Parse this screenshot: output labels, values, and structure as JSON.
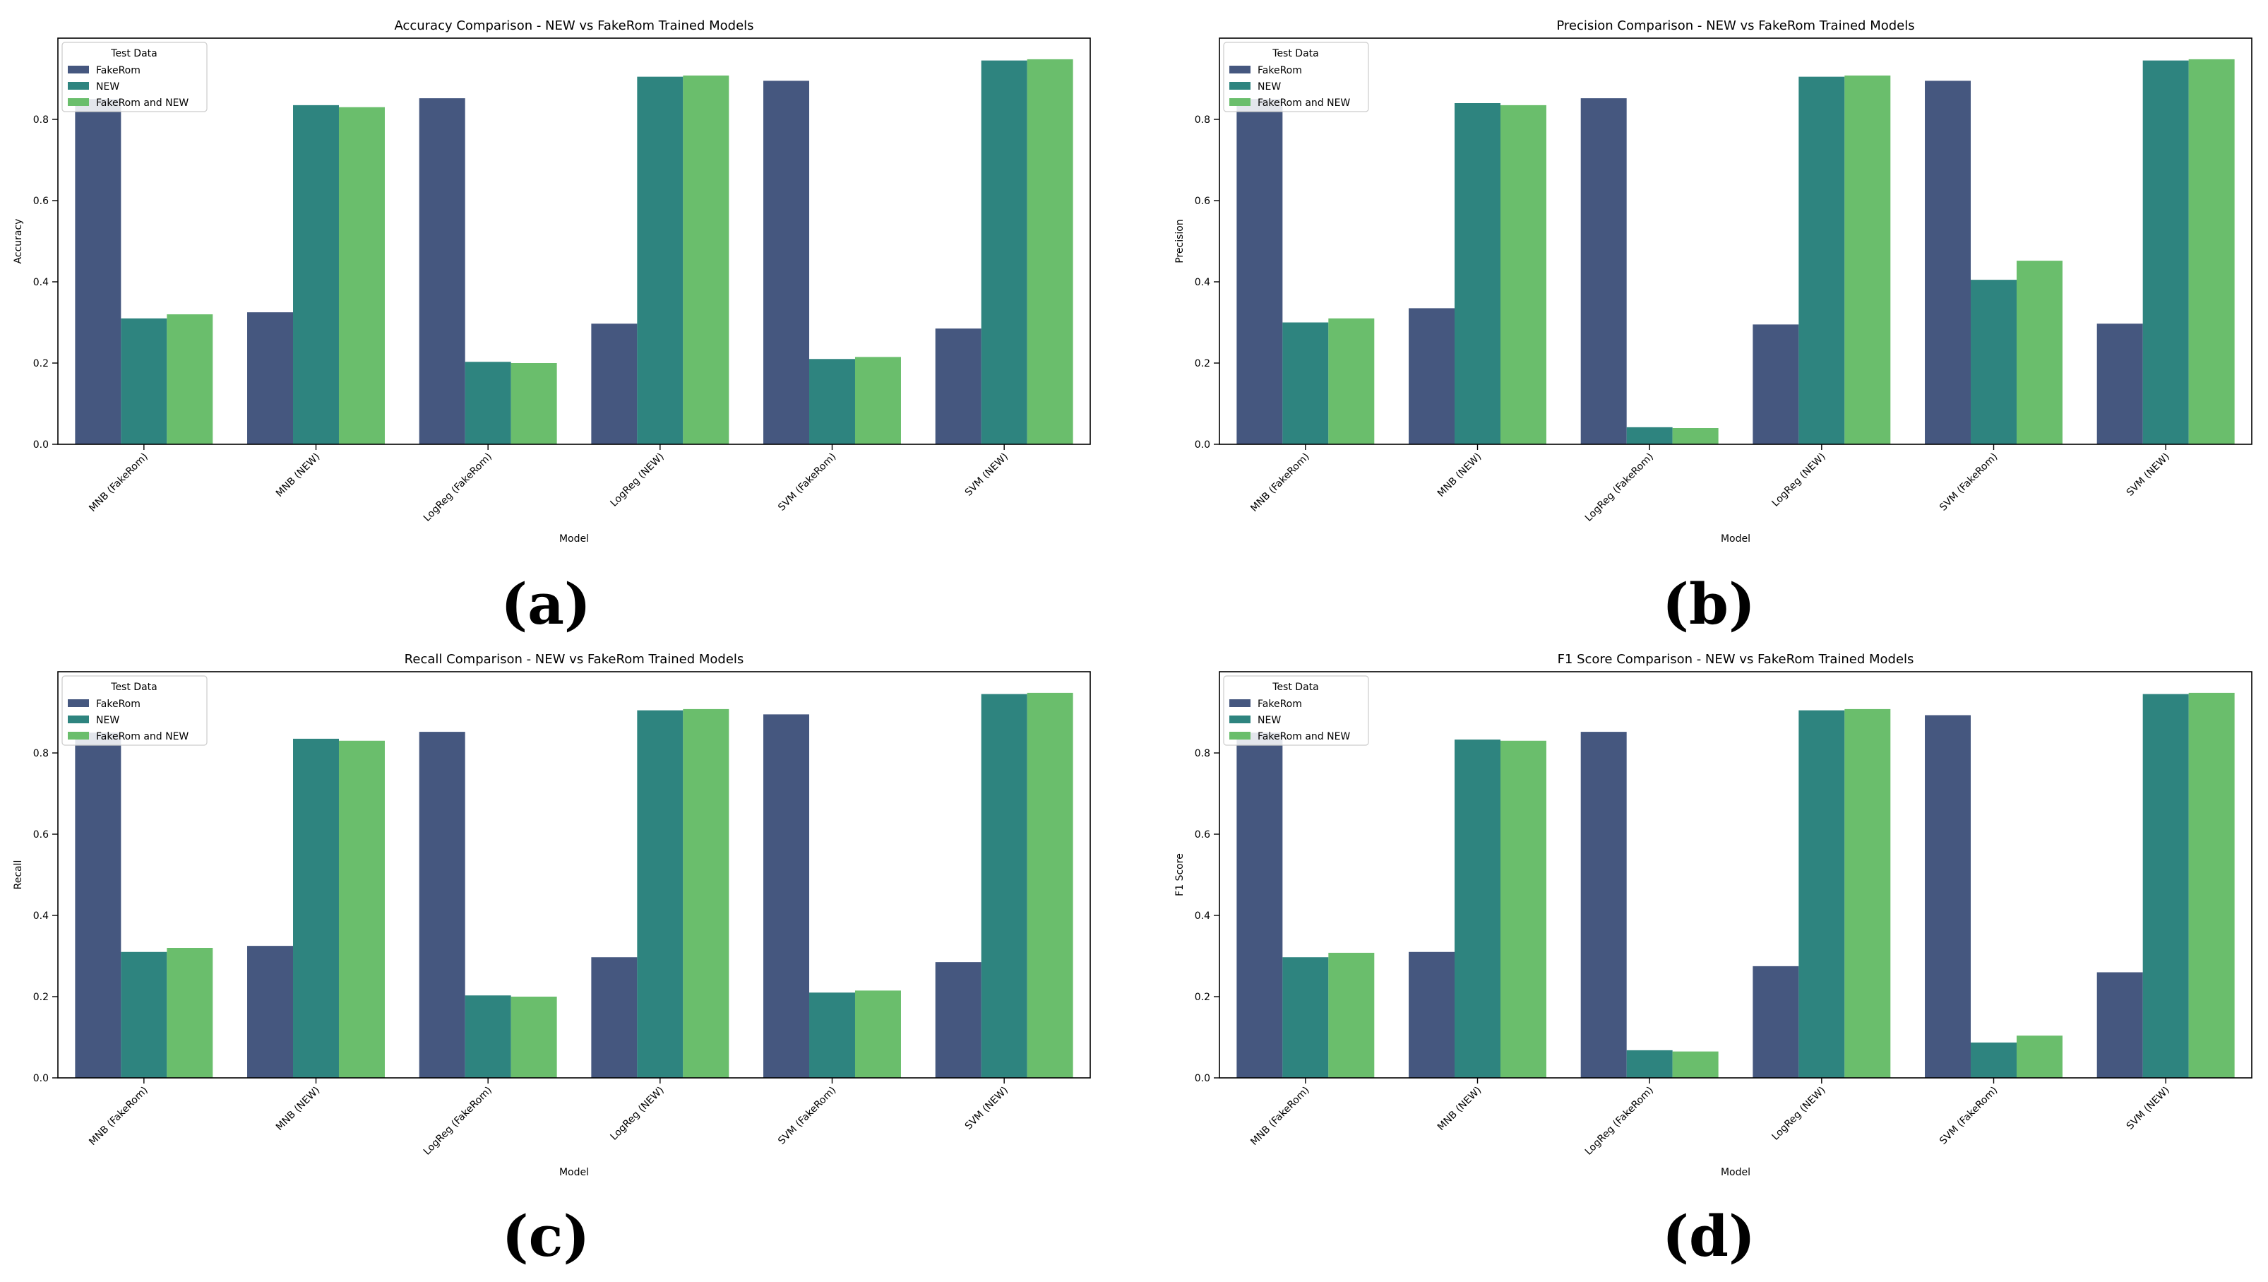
{
  "colors": {
    "FakeRom": "#45577f",
    "NEW": "#2e847f",
    "FakeRom and NEW": "#6abe6c",
    "axis": "#000000",
    "legend_border": "#cccccc"
  },
  "panel_labels": [
    "(a)",
    "(b)",
    "(c)",
    "(d)"
  ],
  "chart_data": [
    {
      "type": "bar",
      "title": "Accuracy Comparison - NEW vs FakeRom Trained Models",
      "xlabel": "Model",
      "ylabel": "Accuracy",
      "ylim": [
        0,
        1.0
      ],
      "yticks": [
        "0.0",
        "0.2",
        "0.4",
        "0.6",
        "0.8"
      ],
      "categories": [
        "MNB (FakeRom)",
        "MNB (NEW)",
        "LogReg (FakeRom)",
        "LogReg (NEW)",
        "SVM (FakeRom)",
        "SVM (NEW)"
      ],
      "legend": {
        "title": "Test Data",
        "position": "top-left"
      },
      "series": [
        {
          "name": "FakeRom",
          "values": [
            0.85,
            0.325,
            0.852,
            0.297,
            0.895,
            0.285
          ]
        },
        {
          "name": "NEW",
          "values": [
            0.31,
            0.835,
            0.203,
            0.905,
            0.21,
            0.945
          ]
        },
        {
          "name": "FakeRom and NEW",
          "values": [
            0.32,
            0.83,
            0.2,
            0.908,
            0.215,
            0.948
          ]
        }
      ]
    },
    {
      "type": "bar",
      "title": "Precision Comparison - NEW vs FakeRom Trained Models",
      "xlabel": "Model",
      "ylabel": "Precision",
      "ylim": [
        0,
        1.0
      ],
      "yticks": [
        "0.0",
        "0.2",
        "0.4",
        "0.6",
        "0.8"
      ],
      "categories": [
        "MNB (FakeRom)",
        "MNB (NEW)",
        "LogReg (FakeRom)",
        "LogReg (NEW)",
        "SVM (FakeRom)",
        "SVM (NEW)"
      ],
      "legend": {
        "title": "Test Data",
        "position": "top-left"
      },
      "series": [
        {
          "name": "FakeRom",
          "values": [
            0.85,
            0.335,
            0.852,
            0.295,
            0.895,
            0.297
          ]
        },
        {
          "name": "NEW",
          "values": [
            0.3,
            0.84,
            0.042,
            0.905,
            0.405,
            0.945
          ]
        },
        {
          "name": "FakeRom and NEW",
          "values": [
            0.31,
            0.835,
            0.04,
            0.908,
            0.452,
            0.948
          ]
        }
      ]
    },
    {
      "type": "bar",
      "title": "Recall Comparison - NEW vs FakeRom Trained Models",
      "xlabel": "Model",
      "ylabel": "Recall",
      "ylim": [
        0,
        1.0
      ],
      "yticks": [
        "0.0",
        "0.2",
        "0.4",
        "0.6",
        "0.8"
      ],
      "categories": [
        "MNB (FakeRom)",
        "MNB (NEW)",
        "LogReg (FakeRom)",
        "LogReg (NEW)",
        "SVM (FakeRom)",
        "SVM (NEW)"
      ],
      "legend": {
        "title": "Test Data",
        "position": "top-left"
      },
      "series": [
        {
          "name": "FakeRom",
          "values": [
            0.85,
            0.325,
            0.852,
            0.297,
            0.895,
            0.285
          ]
        },
        {
          "name": "NEW",
          "values": [
            0.31,
            0.835,
            0.203,
            0.905,
            0.21,
            0.945
          ]
        },
        {
          "name": "FakeRom and NEW",
          "values": [
            0.32,
            0.83,
            0.2,
            0.908,
            0.215,
            0.948
          ]
        }
      ]
    },
    {
      "type": "bar",
      "title": "F1 Score Comparison - NEW vs FakeRom Trained Models",
      "xlabel": "Model",
      "ylabel": "F1 Score",
      "ylim": [
        0,
        1.0
      ],
      "yticks": [
        "0.0",
        "0.2",
        "0.4",
        "0.6",
        "0.8"
      ],
      "categories": [
        "MNB (FakeRom)",
        "MNB (NEW)",
        "LogReg (FakeRom)",
        "LogReg (NEW)",
        "SVM (FakeRom)",
        "SVM (NEW)"
      ],
      "legend": {
        "title": "Test Data",
        "position": "top-left"
      },
      "series": [
        {
          "name": "FakeRom",
          "values": [
            0.85,
            0.31,
            0.852,
            0.275,
            0.893,
            0.26
          ]
        },
        {
          "name": "NEW",
          "values": [
            0.297,
            0.833,
            0.068,
            0.905,
            0.087,
            0.945
          ]
        },
        {
          "name": "FakeRom and NEW",
          "values": [
            0.308,
            0.83,
            0.065,
            0.908,
            0.104,
            0.948
          ]
        }
      ]
    }
  ]
}
